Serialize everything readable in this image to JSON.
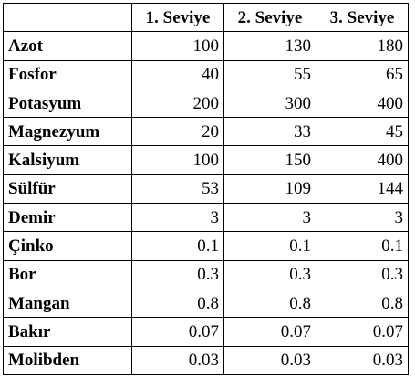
{
  "table": {
    "columns": [
      "",
      "1. Seviye",
      "2. Seviye",
      "3. Seviye"
    ],
    "rows": [
      {
        "label": "Azot",
        "values": [
          "100",
          "130",
          "180"
        ]
      },
      {
        "label": "Fosfor",
        "values": [
          "40",
          "55",
          "65"
        ]
      },
      {
        "label": "Potasyum",
        "values": [
          "200",
          "300",
          "400"
        ]
      },
      {
        "label": "Magnezyum",
        "values": [
          "20",
          "33",
          "45"
        ]
      },
      {
        "label": "Kalsiyum",
        "values": [
          "100",
          "150",
          "400"
        ]
      },
      {
        "label": "Sülfür",
        "values": [
          "53",
          "109",
          "144"
        ]
      },
      {
        "label": "Demir",
        "values": [
          "3",
          "3",
          "3"
        ]
      },
      {
        "label": "Çinko",
        "values": [
          "0.1",
          "0.1",
          "0.1"
        ]
      },
      {
        "label": "Bor",
        "values": [
          "0.3",
          "0.3",
          "0.3"
        ]
      },
      {
        "label": "Mangan",
        "values": [
          "0.8",
          "0.8",
          "0.8"
        ]
      },
      {
        "label": "Bakır",
        "values": [
          "0.07",
          "0.07",
          "0.07"
        ]
      },
      {
        "label": "Molibden",
        "values": [
          "0.03",
          "0.03",
          "0.03"
        ]
      }
    ]
  }
}
